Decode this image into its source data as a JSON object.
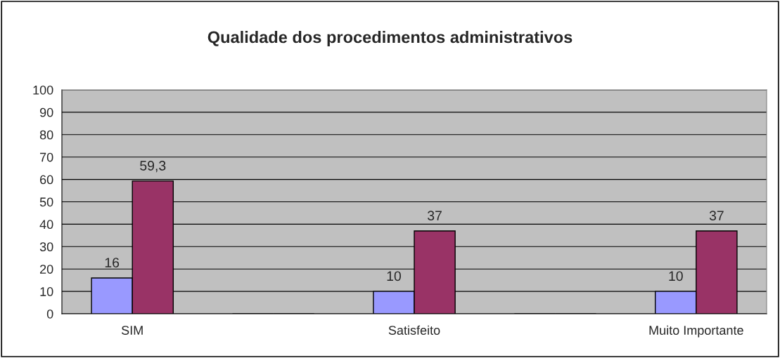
{
  "chart_data": {
    "type": "bar",
    "title": "Qualidade dos procedimentos administrativos",
    "categories": [
      "SIM",
      null,
      "Satisfeito",
      null,
      "Muito Importante"
    ],
    "series": [
      {
        "color": "#9999ff",
        "values": [
          16,
          null,
          10,
          null,
          10
        ],
        "value_labels": [
          "16",
          null,
          "10",
          null,
          "10"
        ]
      },
      {
        "color": "#993366",
        "values": [
          59.3,
          null,
          37,
          null,
          37
        ],
        "value_labels": [
          "59,3",
          null,
          "37",
          null,
          "37"
        ]
      }
    ],
    "ylim": [
      0,
      100
    ],
    "yticks": [
      0,
      10,
      20,
      30,
      40,
      50,
      60,
      70,
      80,
      90,
      100
    ],
    "grid": "y",
    "legend": false
  }
}
